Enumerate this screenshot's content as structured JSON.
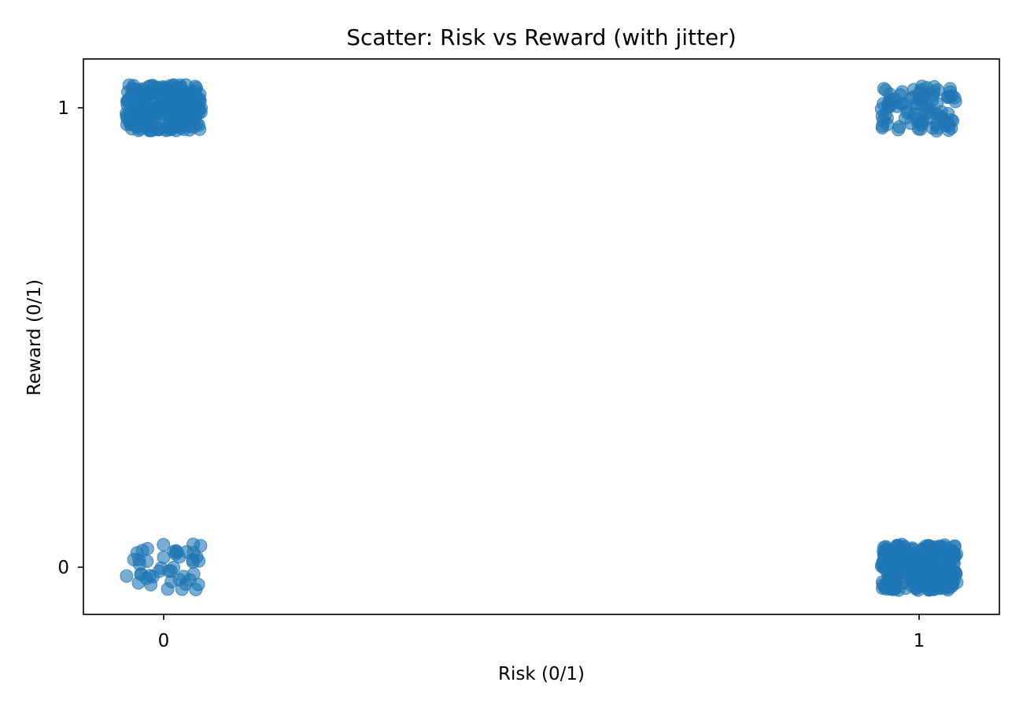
{
  "chart_data": {
    "type": "scatter",
    "title": "Scatter: Risk vs Reward (with jitter)",
    "xlabel": "Risk (0/1)",
    "ylabel": "Reward (0/1)",
    "xlim": [
      -0.1,
      1.1
    ],
    "ylim": [
      -0.1,
      1.1
    ],
    "xticks": [
      0,
      1
    ],
    "xtick_labels": [
      "0",
      "1"
    ],
    "yticks": [
      0,
      1
    ],
    "ytick_labels": [
      "0",
      "1"
    ],
    "jitter": 0.05,
    "grid": false,
    "marker_color": "#1f77b4",
    "marker_alpha": 0.6,
    "groups": [
      {
        "risk": 0,
        "reward": 1,
        "approx_count": 260
      },
      {
        "risk": 0,
        "reward": 0,
        "approx_count": 45
      },
      {
        "risk": 1,
        "reward": 1,
        "approx_count": 90
      },
      {
        "risk": 1,
        "reward": 0,
        "approx_count": 300
      }
    ]
  }
}
